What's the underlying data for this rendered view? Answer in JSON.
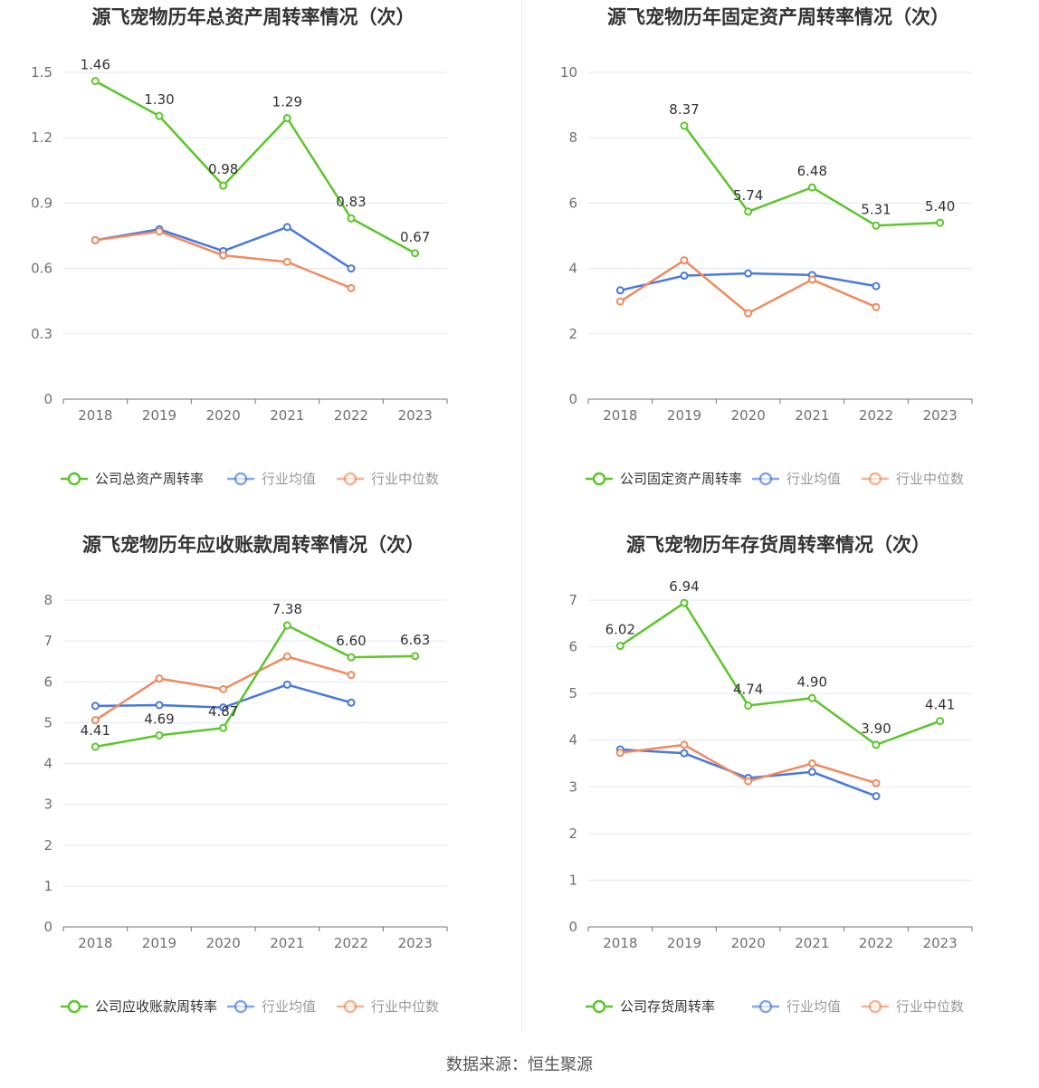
{
  "source": "数据来源：恒生聚源",
  "colors": {
    "company": "#5cc62b",
    "avg": "#4878e0",
    "median": "#f08a5d",
    "grid": "#e0e6f1",
    "axis": "#6e7079"
  },
  "chart_data": [
    {
      "type": "line",
      "title": "源飞宠物历年总资产周转率情况（次）",
      "categories": [
        "2018",
        "2019",
        "2020",
        "2021",
        "2022",
        "2023"
      ],
      "ylim": [
        0,
        1.5
      ],
      "yticks": [
        "0",
        "0.3",
        "0.6",
        "0.9",
        "1.2",
        "1.5"
      ],
      "series": [
        {
          "name": "公司总资产周转率",
          "values": [
            1.46,
            1.3,
            0.98,
            1.29,
            0.83,
            0.67
          ],
          "labels": [
            "1.46",
            "1.30",
            "0.98",
            "1.29",
            "0.83",
            "0.67"
          ]
        },
        {
          "name": "行业均值",
          "values": [
            0.73,
            0.78,
            0.68,
            0.79,
            0.6,
            null
          ]
        },
        {
          "name": "行业中位数",
          "values": [
            0.73,
            0.77,
            0.66,
            0.63,
            0.51,
            null
          ]
        }
      ]
    },
    {
      "type": "line",
      "title": "源飞宠物历年固定资产周转率情况（次）",
      "categories": [
        "2018",
        "2019",
        "2020",
        "2021",
        "2022",
        "2023"
      ],
      "ylim": [
        0,
        10
      ],
      "yticks": [
        "0",
        "2",
        "4",
        "6",
        "8",
        "10"
      ],
      "series": [
        {
          "name": "公司固定资产周转率",
          "values": [
            null,
            8.37,
            5.74,
            6.48,
            5.31,
            5.4
          ],
          "labels": [
            null,
            "8.37",
            "5.74",
            "6.48",
            "5.31",
            "5.40"
          ]
        },
        {
          "name": "行业均值",
          "values": [
            3.33,
            3.78,
            3.85,
            3.8,
            3.46,
            null
          ]
        },
        {
          "name": "行业中位数",
          "values": [
            2.99,
            4.25,
            2.63,
            3.66,
            2.82,
            null
          ]
        }
      ]
    },
    {
      "type": "line",
      "title": "源飞宠物历年应收账款周转率情况（次）",
      "categories": [
        "2018",
        "2019",
        "2020",
        "2021",
        "2022",
        "2023"
      ],
      "ylim": [
        0,
        8
      ],
      "yticks": [
        "0",
        "1",
        "2",
        "3",
        "4",
        "5",
        "6",
        "7",
        "8"
      ],
      "series": [
        {
          "name": "公司应收账款周转率",
          "values": [
            4.41,
            4.69,
            4.87,
            7.38,
            6.6,
            6.63
          ],
          "labels": [
            "4.41",
            "4.69",
            "4.87",
            "7.38",
            "6.60",
            "6.63"
          ]
        },
        {
          "name": "行业均值",
          "values": [
            5.41,
            5.43,
            5.37,
            5.93,
            5.49,
            null
          ]
        },
        {
          "name": "行业中位数",
          "values": [
            5.06,
            6.08,
            5.82,
            6.62,
            6.17,
            null
          ]
        }
      ]
    },
    {
      "type": "line",
      "title": "源飞宠物历年存货周转率情况（次）",
      "categories": [
        "2018",
        "2019",
        "2020",
        "2021",
        "2022",
        "2023"
      ],
      "ylim": [
        0,
        7
      ],
      "yticks": [
        "0",
        "1",
        "2",
        "3",
        "4",
        "5",
        "6",
        "7"
      ],
      "series": [
        {
          "name": "公司存货周转率",
          "values": [
            6.02,
            6.94,
            4.74,
            4.9,
            3.9,
            4.41
          ],
          "labels": [
            "6.02",
            "6.94",
            "4.74",
            "4.90",
            "3.90",
            "4.41"
          ]
        },
        {
          "name": "行业均值",
          "values": [
            3.8,
            3.72,
            3.19,
            3.32,
            2.8,
            null
          ]
        },
        {
          "name": "行业中位数",
          "values": [
            3.73,
            3.9,
            3.12,
            3.5,
            3.08,
            null
          ]
        }
      ]
    }
  ]
}
